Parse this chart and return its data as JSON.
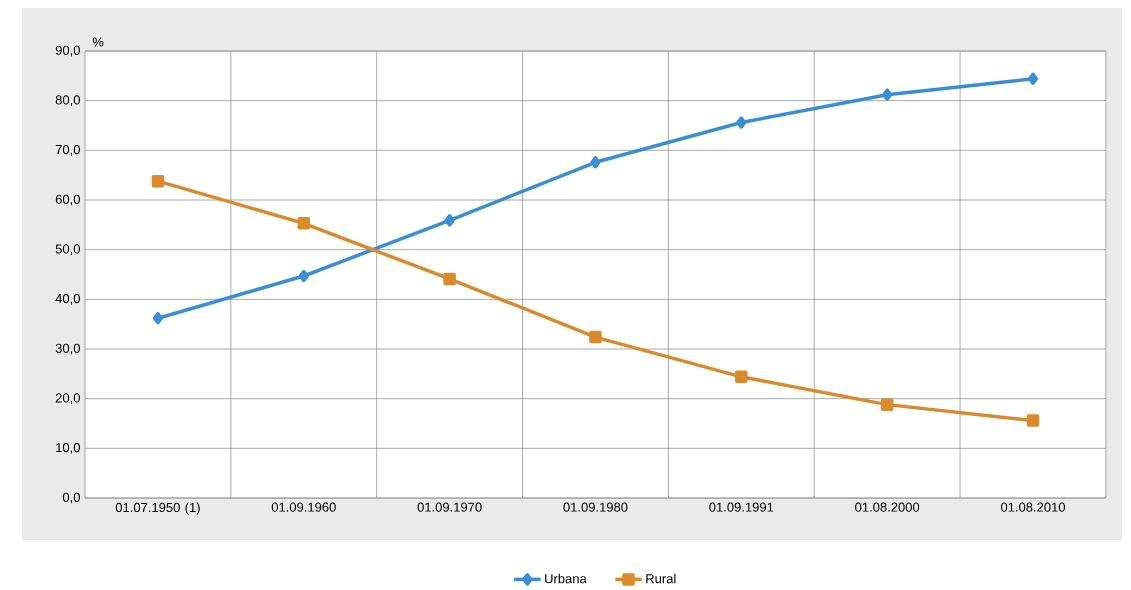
{
  "chart_data": {
    "type": "line",
    "ylabel": "%",
    "categories": [
      "01.07.1950 (1)",
      "01.09.1960",
      "01.09.1970",
      "01.09.1980",
      "01.09.1991",
      "01.08.2000",
      "01.08.2010"
    ],
    "series": [
      {
        "name": "Urbana",
        "color": "#3b8ed6",
        "marker": "diamond",
        "values": [
          36.2,
          44.7,
          55.9,
          67.6,
          75.6,
          81.2,
          84.4
        ]
      },
      {
        "name": "Rural",
        "color": "#d98a2b",
        "marker": "square",
        "values": [
          63.8,
          55.3,
          44.1,
          32.4,
          24.4,
          18.8,
          15.6
        ]
      }
    ],
    "ylim": [
      0,
      90
    ],
    "yticks": [
      {
        "value": 0,
        "label": "0,0"
      },
      {
        "value": 10,
        "label": "10,0"
      },
      {
        "value": 20,
        "label": "20,0"
      },
      {
        "value": 30,
        "label": "30,0"
      },
      {
        "value": 40,
        "label": "40,0"
      },
      {
        "value": 50,
        "label": "50,0"
      },
      {
        "value": 60,
        "label": "60,0"
      },
      {
        "value": 70,
        "label": "70,0"
      },
      {
        "value": 80,
        "label": "80,0"
      },
      {
        "value": 90,
        "label": "90,0"
      }
    ],
    "grid": true,
    "legend": "bottom",
    "line_style": "solid"
  }
}
